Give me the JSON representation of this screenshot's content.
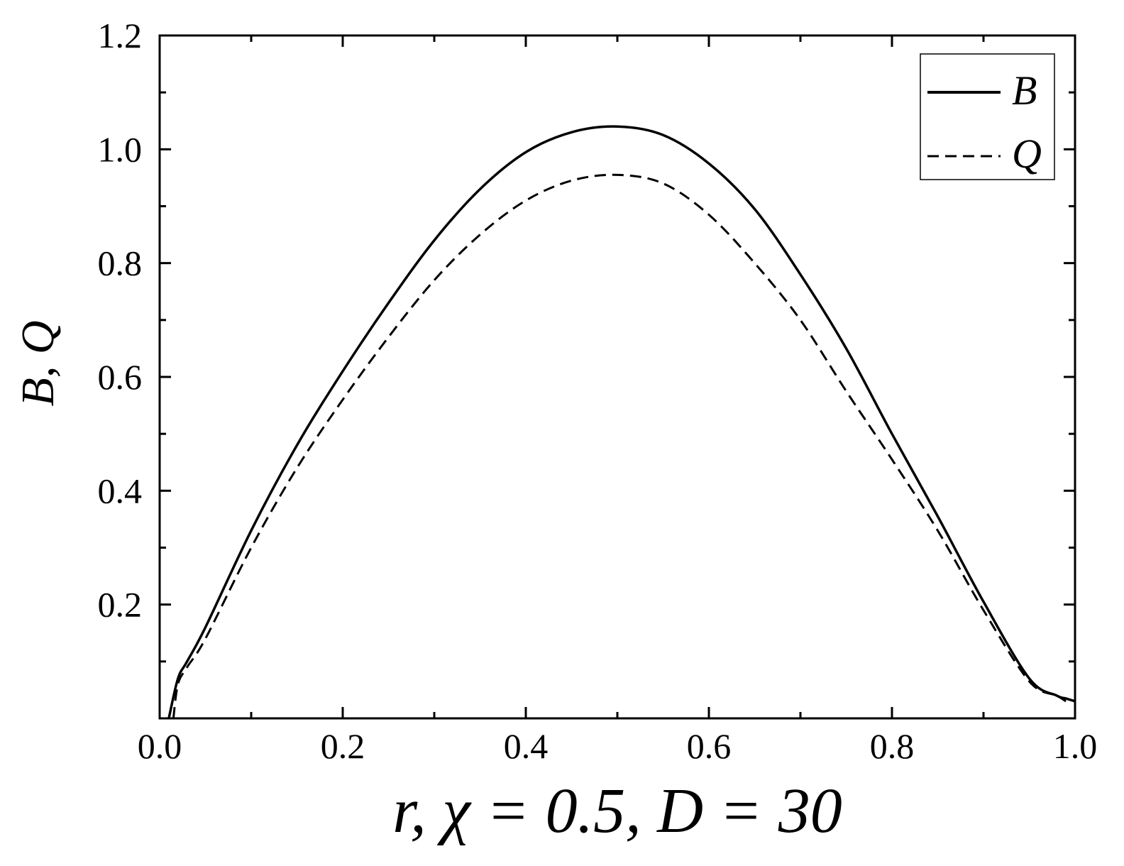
{
  "chart_data": {
    "type": "line",
    "xlabel": "r, χ = 0.5, D = 30",
    "ylabel": "B, Q",
    "xlim": [
      0.0,
      1.0
    ],
    "ylim": [
      0.0,
      1.2
    ],
    "x_ticks": [
      "0.0",
      "0.2",
      "0.4",
      "0.6",
      "0.8",
      "1.0"
    ],
    "y_ticks": [
      "0.2",
      "0.4",
      "0.6",
      "0.8",
      "1.0",
      "1.2"
    ],
    "grid": false,
    "legend_position": "top-right",
    "series": [
      {
        "name": "B",
        "style": "solid",
        "color": "#000000",
        "x": [
          0.01,
          0.02,
          0.03,
          0.05,
          0.1,
          0.15,
          0.2,
          0.25,
          0.3,
          0.35,
          0.4,
          0.45,
          0.5,
          0.55,
          0.6,
          0.65,
          0.7,
          0.75,
          0.8,
          0.85,
          0.9,
          0.95,
          0.98,
          0.99,
          1.0
        ],
        "y": [
          0.0,
          0.07,
          0.1,
          0.16,
          0.33,
          0.48,
          0.61,
          0.73,
          0.84,
          0.93,
          0.995,
          1.03,
          1.04,
          1.025,
          0.975,
          0.895,
          0.78,
          0.65,
          0.5,
          0.355,
          0.205,
          0.07,
          0.04,
          0.035,
          0.03
        ]
      },
      {
        "name": "Q",
        "style": "dashed",
        "color": "#000000",
        "x": [
          0.015,
          0.02,
          0.03,
          0.05,
          0.1,
          0.15,
          0.2,
          0.25,
          0.3,
          0.35,
          0.4,
          0.45,
          0.5,
          0.55,
          0.6,
          0.65,
          0.7,
          0.75,
          0.8,
          0.85,
          0.9,
          0.95,
          0.98,
          0.99
        ],
        "y": [
          0.0,
          0.06,
          0.09,
          0.14,
          0.3,
          0.44,
          0.56,
          0.67,
          0.77,
          0.85,
          0.91,
          0.945,
          0.955,
          0.94,
          0.885,
          0.8,
          0.7,
          0.575,
          0.455,
          0.33,
          0.19,
          0.065,
          0.04,
          0.03
        ]
      }
    ]
  }
}
